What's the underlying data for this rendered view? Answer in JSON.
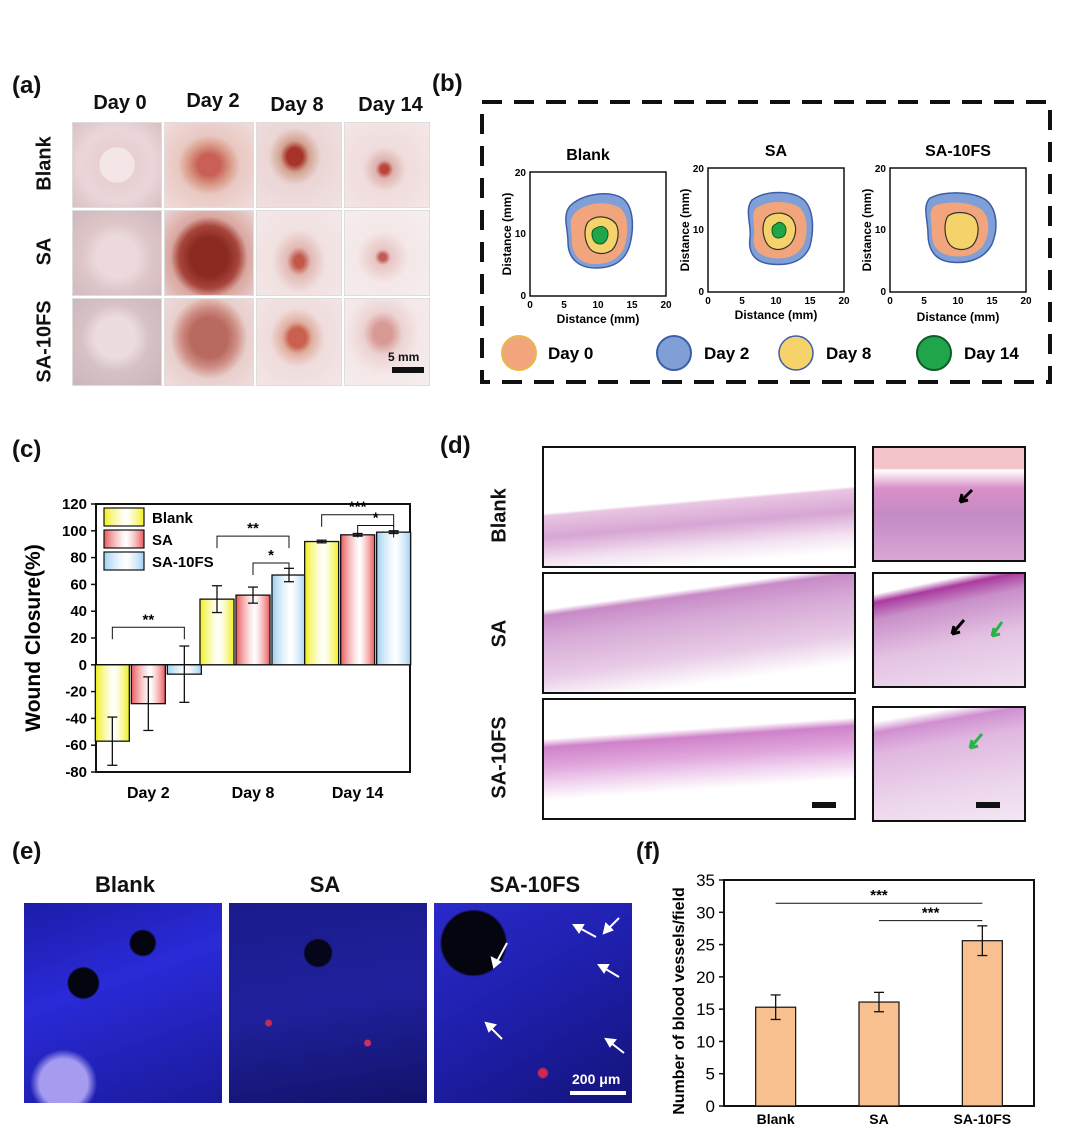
{
  "panels": {
    "a": "(a)",
    "b": "(b)",
    "c": "(c)",
    "d": "(d)",
    "e": "(e)",
    "f": "(f)"
  },
  "panel_a": {
    "columns": [
      "Day 0",
      "Day 2",
      "Day 8",
      "Day 14"
    ],
    "rows": [
      "Blank",
      "SA",
      "SA-10FS"
    ],
    "scale_label": "5 mm"
  },
  "panel_b": {
    "plots": [
      "Blank",
      "SA",
      "SA-10FS"
    ],
    "xlabel": "Distance (mm)",
    "ylabel": "Distance (mm)",
    "ticks": [
      "0",
      "5",
      "10",
      "15",
      "20"
    ],
    "legend": [
      {
        "label": "Day 0",
        "color": "#f2a57d"
      },
      {
        "label": "Day 2",
        "color": "#7f9fd6"
      },
      {
        "label": "Day 8",
        "color": "#f6d36a"
      },
      {
        "label": "Day 14",
        "color": "#1fa64b"
      }
    ]
  },
  "panel_d": {
    "rows": [
      "Blank",
      "SA",
      "SA-10FS"
    ]
  },
  "panel_e": {
    "titles": [
      "Blank",
      "SA",
      "SA-10FS"
    ],
    "scale_label": "200 μm"
  },
  "chart_data": [
    {
      "id": "c",
      "type": "bar",
      "categories": [
        "Day 2",
        "Day 8",
        "Day 14"
      ],
      "series": [
        {
          "name": "Blank",
          "values": [
            -57,
            49,
            92
          ],
          "errors": [
            18,
            10,
            1
          ],
          "color": "#f0ef1a"
        },
        {
          "name": "SA",
          "values": [
            -29,
            52,
            97
          ],
          "errors": [
            20,
            6,
            1
          ],
          "color": "#e8585a"
        },
        {
          "name": "SA-10FS",
          "values": [
            -7,
            67,
            99
          ],
          "errors": [
            21,
            5,
            1
          ],
          "color": "#9fd0f2"
        }
      ],
      "ylabel": "Wound Closure(%)",
      "ylim": [
        -80,
        120
      ],
      "yticks": [
        "-80",
        "-60",
        "-40",
        "-20",
        "0",
        "20",
        "40",
        "60",
        "80",
        "100",
        "120"
      ],
      "legend_position": "top-left",
      "significance": [
        "**",
        "**",
        "*",
        "***",
        "*"
      ]
    },
    {
      "id": "f",
      "type": "bar",
      "categories": [
        "Blank",
        "SA",
        "SA-10FS"
      ],
      "values": [
        15.3,
        16.1,
        25.6
      ],
      "errors": [
        1.9,
        1.5,
        2.3
      ],
      "color": "#f8c08f",
      "ylabel": "Number of blood vessels/field",
      "ylim": [
        0,
        35
      ],
      "yticks": [
        "0",
        "5",
        "10",
        "15",
        "20",
        "25",
        "30",
        "35"
      ],
      "significance": [
        "***",
        "***"
      ]
    }
  ]
}
